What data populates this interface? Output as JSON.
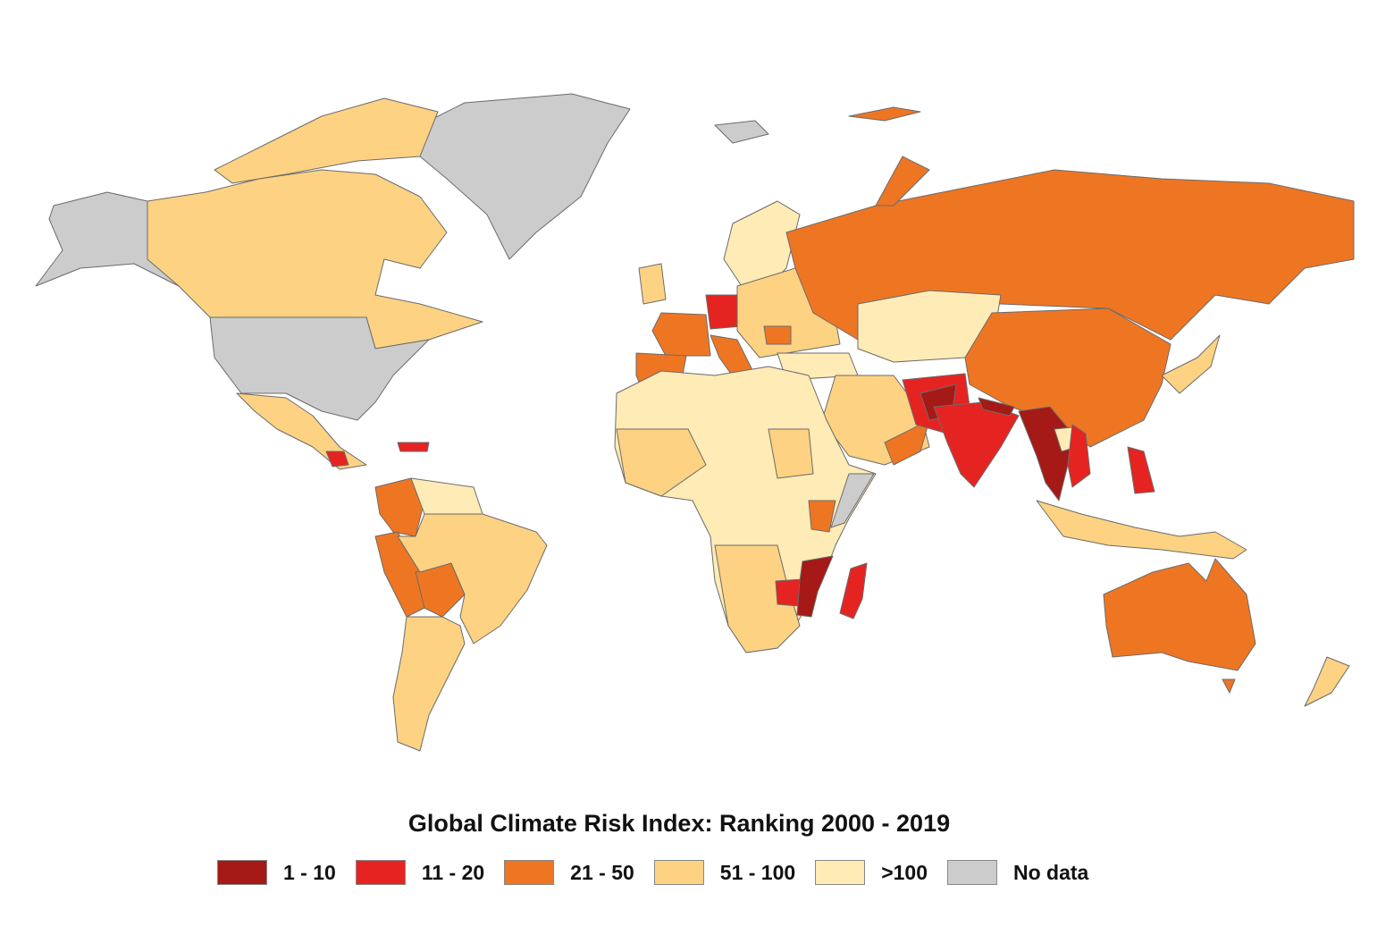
{
  "title": "Global Climate Risk Index: Ranking 2000 - 2019",
  "legend": [
    {
      "label": "1 - 10",
      "color": "#a51916"
    },
    {
      "label": "11 - 20",
      "color": "#e52421"
    },
    {
      "label": "21 - 50",
      "color": "#ee7623"
    },
    {
      "label": "51 - 100",
      "color": "#fdd283"
    },
    {
      "label": ">100",
      "color": "#ffebb5"
    },
    {
      "label": "No data",
      "color": "#cccccc"
    }
  ]
}
